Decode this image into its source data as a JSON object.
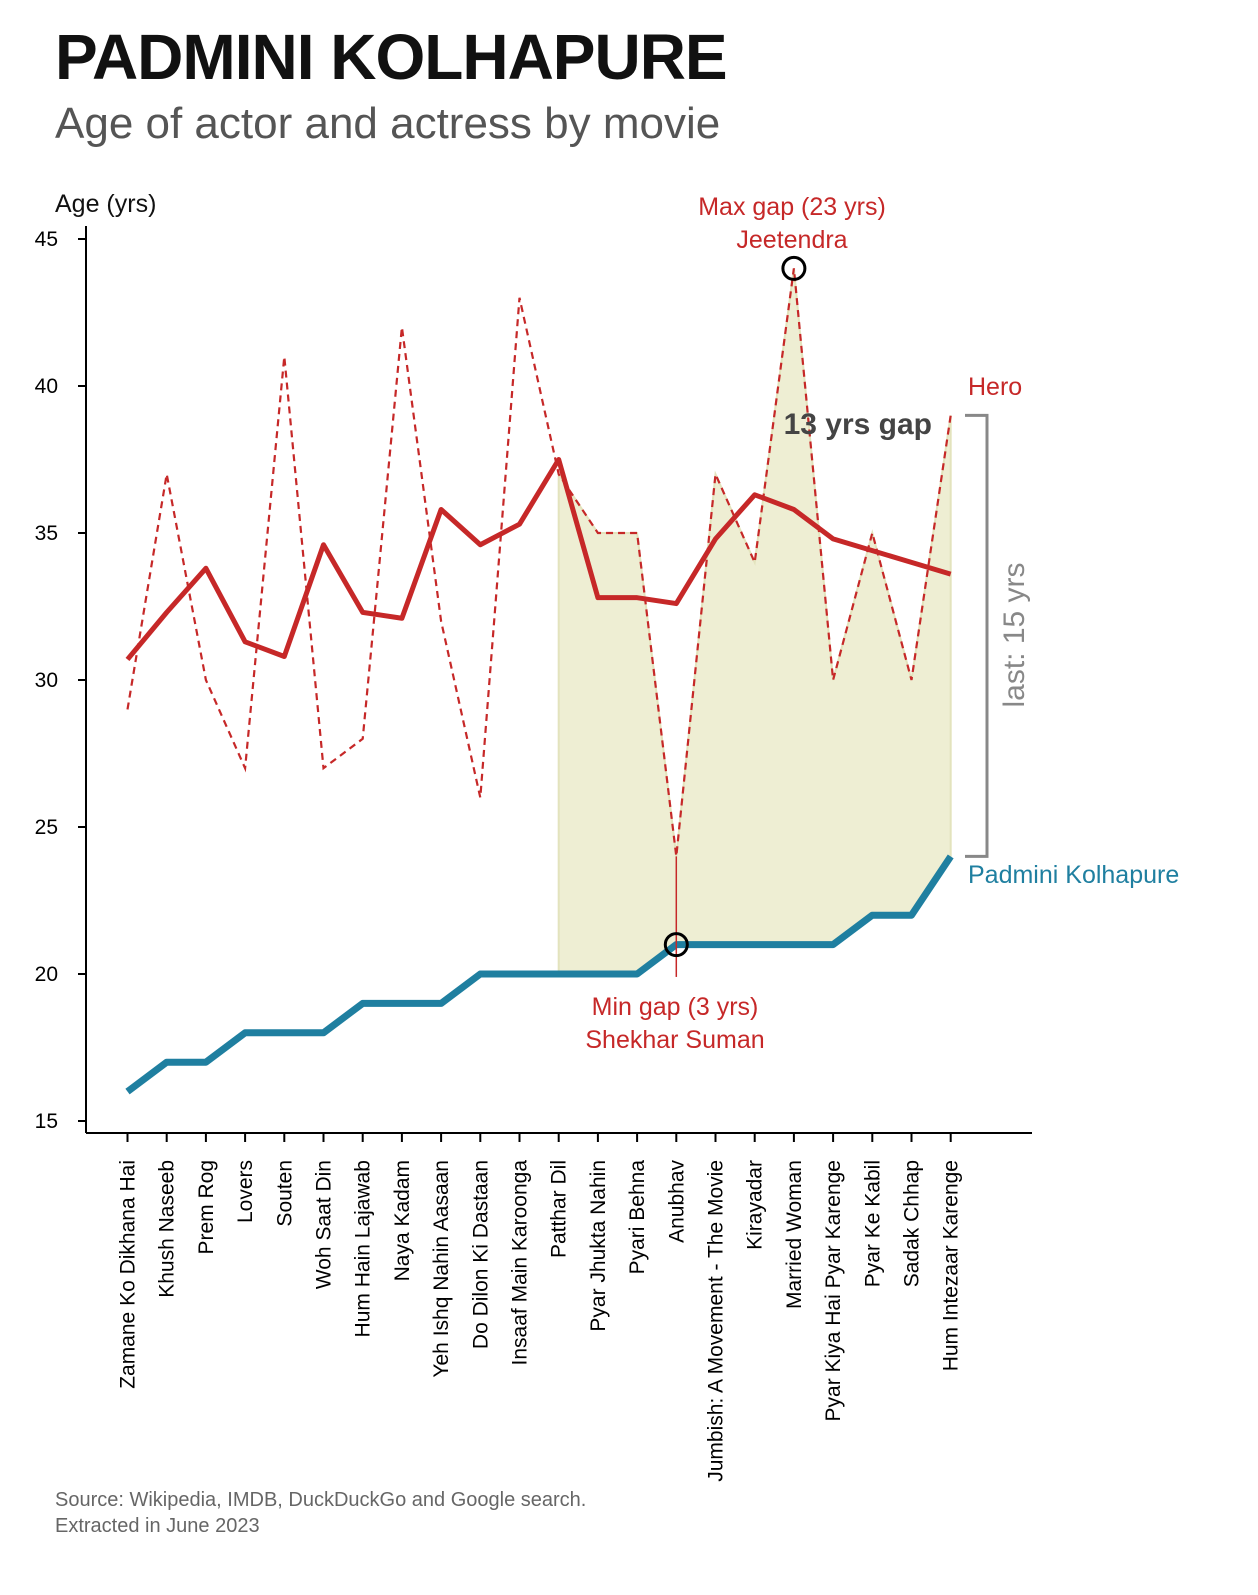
{
  "title": "PADMINI KOLHAPURE",
  "subtitle": "Age of actor and actress by movie",
  "source": {
    "line1": "Source: Wikipedia, IMDB, DuckDuckGo and Google search.",
    "line2": "Extracted in June 2023"
  },
  "colors": {
    "hero": "#c62828",
    "actress": "#1f7fa0",
    "shade": "#eeeed3",
    "bracket": "#888888",
    "gap_label": "#444444"
  },
  "chart_data": {
    "type": "line",
    "ylabel": "Age (yrs)",
    "xlabel": "",
    "ylim": [
      15,
      45
    ],
    "yticks": [
      15,
      20,
      25,
      30,
      35,
      40,
      45
    ],
    "categories": [
      "Zamane Ko Dikhana Hai",
      "Khush Naseeb",
      "Prem Rog",
      "Lovers",
      "Souten",
      "Woh Saat Din",
      "Hum Hain Lajawab",
      "Naya Kadam",
      "Yeh Ishq Nahin Aasaan",
      "Do Dilon Ki Dastaan",
      "Insaaf Main Karoonga",
      "Patthar Dil",
      "Pyar Jhukta Nahin",
      "Pyari Behna",
      "Anubhav",
      "Jumbish: A Movement - The Movie",
      "Kirayadar",
      "Married Woman",
      "Pyar Kiya Hai Pyar Karenge",
      "Pyar Ke Kabil",
      "Sadak Chhap",
      "Hum Intezaar Karenge"
    ],
    "series": [
      {
        "name": "Hero",
        "style": "dashed",
        "values": [
          29,
          37,
          30,
          27,
          41,
          27,
          28,
          42,
          32,
          26,
          43,
          37,
          35,
          35,
          24,
          37,
          34,
          44,
          30,
          35,
          30,
          39
        ]
      },
      {
        "name": "Hero",
        "style": "smoothed",
        "values": [
          30.7,
          32.3,
          33.8,
          31.3,
          30.8,
          34.6,
          32.3,
          32.1,
          35.8,
          34.6,
          35.3,
          37.5,
          32.8,
          32.8,
          32.6,
          34.8,
          36.3,
          35.8,
          34.8,
          34.4,
          34,
          33.6
        ]
      },
      {
        "name": "Padmini Kolhapure",
        "style": "solid",
        "values": [
          16,
          17,
          17,
          18,
          18,
          18,
          19,
          19,
          19,
          20,
          20,
          20,
          20,
          20,
          21,
          21,
          21,
          21,
          21,
          22,
          22,
          24
        ]
      }
    ],
    "shaded_range": {
      "from": "Patthar Dil",
      "to": "Hum Intezaar Karenge"
    },
    "annotations": {
      "max_gap": {
        "line1": "Max gap (23 yrs)",
        "line2": "Jeetendra",
        "category": "Married Woman",
        "value": 44
      },
      "min_gap": {
        "line1": "Min gap (3 yrs)",
        "line2": "Shekhar Suman",
        "category": "Anubhav",
        "value": 21
      },
      "gap_label": "13 yrs gap",
      "bracket_label": "last: 15 yrs",
      "bracket_range": [
        24,
        39
      ],
      "hero_label": "Hero",
      "actress_label": "Padmini Kolhapure"
    }
  }
}
